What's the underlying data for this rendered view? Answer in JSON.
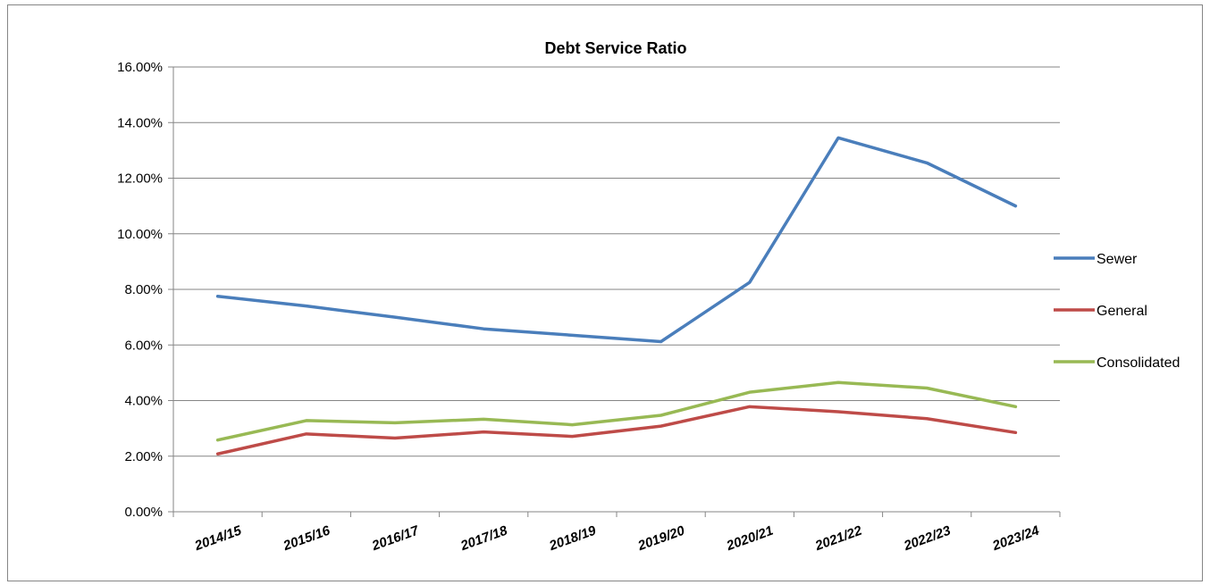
{
  "chart_data": {
    "type": "line",
    "title": "Debt Service Ratio",
    "xlabel": "",
    "ylabel": "",
    "categories": [
      "2014/15",
      "2015/16",
      "2016/17",
      "2017/18",
      "2018/19",
      "2019/20",
      "2020/21",
      "2021/22",
      "2022/23",
      "2023/24"
    ],
    "ylim": [
      0,
      0.16
    ],
    "y_ticks": [
      {
        "value": 0.0,
        "label": "0.00%"
      },
      {
        "value": 0.02,
        "label": "2.00%"
      },
      {
        "value": 0.04,
        "label": "4.00%"
      },
      {
        "value": 0.06,
        "label": "6.00%"
      },
      {
        "value": 0.08,
        "label": "8.00%"
      },
      {
        "value": 0.1,
        "label": "10.00%"
      },
      {
        "value": 0.12,
        "label": "12.00%"
      },
      {
        "value": 0.14,
        "label": "14.00%"
      },
      {
        "value": 0.16,
        "label": "16.00%"
      }
    ],
    "grid": true,
    "legend_position": "right",
    "series": [
      {
        "name": "Sewer",
        "color": "#4a7ebb",
        "values": [
          0.0775,
          0.074,
          0.07,
          0.0658,
          0.0635,
          0.0612,
          0.0825,
          0.1345,
          0.1255,
          0.11
        ]
      },
      {
        "name": "General",
        "color": "#be4b48",
        "values": [
          0.0208,
          0.028,
          0.0265,
          0.0287,
          0.0271,
          0.0308,
          0.0378,
          0.036,
          0.0335,
          0.0285
        ]
      },
      {
        "name": "Consolidated",
        "color": "#98b954",
        "values": [
          0.0258,
          0.0328,
          0.032,
          0.0333,
          0.0313,
          0.0347,
          0.043,
          0.0465,
          0.0445,
          0.0378
        ]
      }
    ]
  }
}
